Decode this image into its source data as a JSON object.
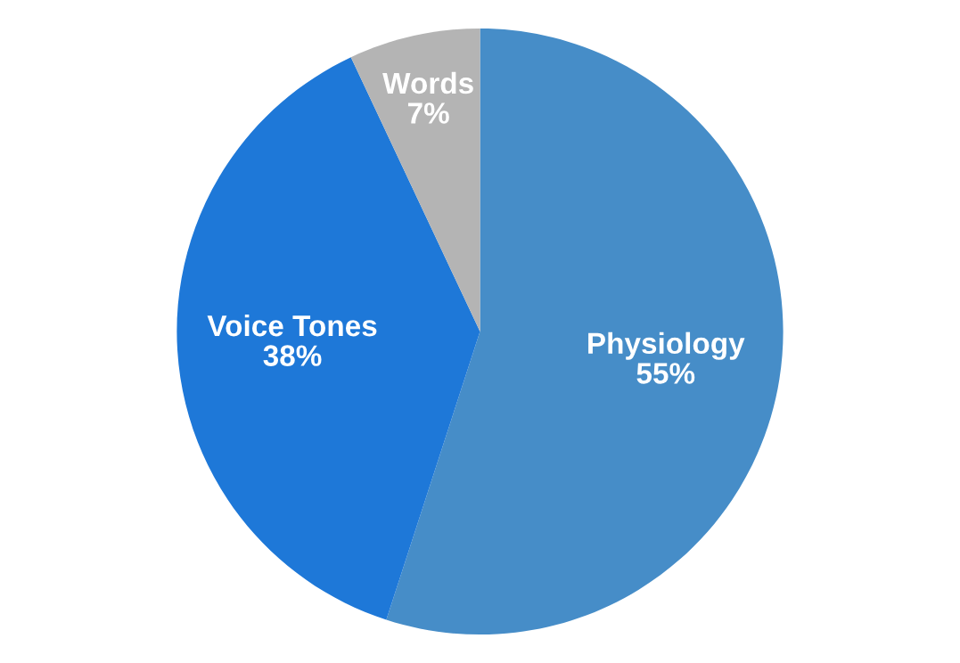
{
  "chart_data": {
    "type": "pie",
    "categories": [
      "Physiology",
      "Voice Tones",
      "Words"
    ],
    "values": [
      55,
      38,
      7
    ],
    "value_labels": [
      "55%",
      "38%",
      "7%"
    ],
    "colors": [
      "#468dc8",
      "#1e78d8",
      "#b4b4b4"
    ]
  }
}
